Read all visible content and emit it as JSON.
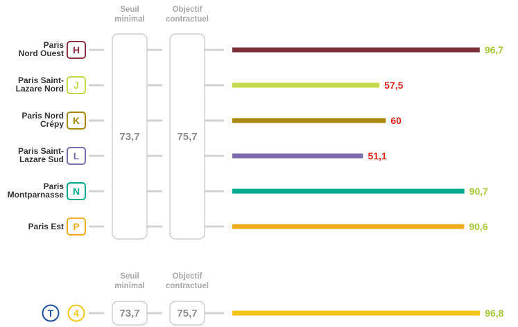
{
  "chart_data": {
    "type": "bar",
    "orientation": "horizontal",
    "xlim": [
      0,
      100
    ],
    "headers": {
      "threshold": [
        "Seuil",
        "minimal"
      ],
      "target": [
        "Objectif",
        "contractuel"
      ]
    },
    "groups": [
      {
        "threshold": "73,7",
        "target": "75,7",
        "rows": [
          {
            "name_lines": [
              "Paris",
              "Nord Ouest"
            ],
            "badge": "H",
            "badge_color": "#8B2F42",
            "bar_color": "#7D3039",
            "value": 96.7,
            "label": "96,7",
            "label_color": "#A5C83A"
          },
          {
            "name_lines": [
              "Paris Saint-",
              "Lazare Nord"
            ],
            "badge": "J",
            "badge_color": "#C5D94A",
            "bar_color": "#C5D94A",
            "value": 57.5,
            "label": "57,5",
            "label_color": "#E2231A"
          },
          {
            "name_lines": [
              "Paris Nord",
              "Crépy"
            ],
            "badge": "K",
            "badge_color": "#A8880B",
            "bar_color": "#A8880B",
            "value": 60,
            "label": "60",
            "label_color": "#E2231A"
          },
          {
            "name_lines": [
              "Paris Saint-",
              "Lazare Sud"
            ],
            "badge": "L",
            "badge_color": "#7B6CB0",
            "bar_color": "#7B6CB0",
            "value": 51.1,
            "label": "51,1",
            "label_color": "#E2231A"
          },
          {
            "name_lines": [
              "Paris",
              "Montparnasse"
            ],
            "badge": "N",
            "badge_color": "#00A88F",
            "bar_color": "#00A88F",
            "value": 90.7,
            "label": "90,7",
            "label_color": "#A5C83A"
          },
          {
            "name_lines": [
              "Paris Est"
            ],
            "badge": "P",
            "badge_color": "#F0AB1C",
            "bar_color": "#F0AB1C",
            "value": 90.6,
            "label": "90,6",
            "label_color": "#A5C83A"
          }
        ]
      },
      {
        "threshold": "73,7",
        "target": "75,7",
        "rows": [
          {
            "badge": "T",
            "badge_color": "#1D4F9C",
            "badge2": "4",
            "badge2_color": "#F5C518",
            "bar_color": "#F5C518",
            "value": 96.8,
            "label": "96,8",
            "label_color": "#A5C83A"
          }
        ]
      }
    ]
  }
}
